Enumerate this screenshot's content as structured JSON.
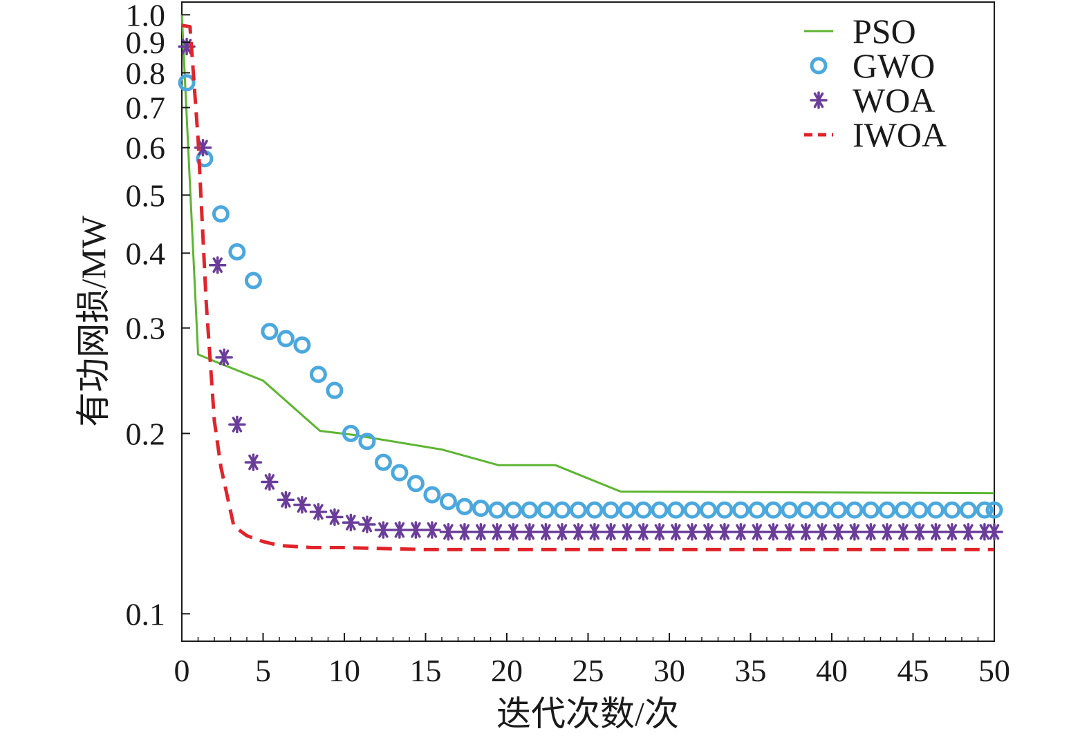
{
  "chart_data": {
    "type": "line",
    "xlabel": "迭代次数/次",
    "ylabel": "有功网损/MW",
    "xlim": [
      0,
      50
    ],
    "ylim": [
      0.09,
      1.05
    ],
    "y_scale": "log",
    "grid": false,
    "legend_position": "top-right",
    "x_ticks": [
      "0",
      "5",
      "10",
      "15",
      "20",
      "25",
      "30",
      "35",
      "40",
      "45",
      "50"
    ],
    "y_ticks": [
      "0.1",
      "0.2",
      "0.3",
      "0.4",
      "0.5",
      "0.6",
      "0.7",
      "0.8",
      "0.9",
      "1.0"
    ],
    "series": [
      {
        "name": "PSO",
        "color": "#5cb531",
        "style": "solid",
        "x": [
          0,
          1,
          2,
          5,
          8.5,
          10.5,
          16,
          19.5,
          23,
          27,
          50
        ],
        "y": [
          1.0,
          0.271,
          0.264,
          0.245,
          0.202,
          0.199,
          0.188,
          0.177,
          0.177,
          0.16,
          0.159
        ]
      },
      {
        "name": "GWO",
        "color": "#4aa8de",
        "style": "circle-markers",
        "x": [
          0.3,
          1.4,
          2.4,
          3.4,
          4.4,
          5.4,
          6.4,
          7.4,
          8.4,
          9.4,
          10.4,
          11.4,
          12.4,
          13.4,
          14.4,
          15.4,
          16.4,
          17.4,
          18.4,
          19.4,
          20.4,
          21.4,
          22.4,
          23.4,
          24.4,
          25.4,
          26.4,
          27.4,
          28.4,
          29.4,
          30.4,
          31.4,
          32.4,
          33.4,
          34.4,
          35.4,
          36.4,
          37.4,
          38.4,
          39.4,
          40.4,
          41.4,
          42.4,
          43.4,
          44.4,
          45.4,
          46.4,
          47.4,
          48.4,
          49.4,
          50
        ],
        "y": [
          0.77,
          0.575,
          0.465,
          0.402,
          0.36,
          0.296,
          0.288,
          0.281,
          0.251,
          0.236,
          0.2,
          0.194,
          0.179,
          0.172,
          0.165,
          0.158,
          0.154,
          0.151,
          0.15,
          0.149,
          0.149,
          0.149,
          0.149,
          0.149,
          0.149,
          0.149,
          0.149,
          0.149,
          0.149,
          0.149,
          0.149,
          0.149,
          0.149,
          0.149,
          0.149,
          0.149,
          0.149,
          0.149,
          0.149,
          0.149,
          0.149,
          0.149,
          0.149,
          0.149,
          0.149,
          0.149,
          0.149,
          0.149,
          0.149,
          0.149,
          0.149
        ]
      },
      {
        "name": "WOA",
        "color": "#6a3d9a",
        "style": "star-markers",
        "x": [
          0.3,
          1.3,
          2.2,
          2.6,
          3.4,
          4.4,
          5.4,
          6.4,
          7.4,
          8.4,
          9.4,
          10.4,
          11.4,
          12.4,
          13.4,
          14.4,
          15.4,
          16.4,
          17.4,
          18.4,
          19.4,
          20.4,
          21.4,
          22.4,
          23.4,
          24.4,
          25.4,
          26.4,
          27.4,
          28.4,
          29.4,
          30.4,
          31.4,
          32.4,
          33.4,
          34.4,
          35.4,
          36.4,
          37.4,
          38.4,
          39.4,
          40.4,
          41.4,
          42.4,
          43.4,
          44.4,
          45.4,
          46.4,
          47.4,
          48.4,
          49.4,
          50
        ],
        "y": [
          0.885,
          0.6,
          0.382,
          0.268,
          0.207,
          0.179,
          0.166,
          0.155,
          0.152,
          0.148,
          0.145,
          0.142,
          0.141,
          0.138,
          0.138,
          0.138,
          0.138,
          0.137,
          0.137,
          0.137,
          0.137,
          0.137,
          0.137,
          0.137,
          0.137,
          0.137,
          0.137,
          0.137,
          0.137,
          0.137,
          0.137,
          0.137,
          0.137,
          0.137,
          0.137,
          0.137,
          0.137,
          0.137,
          0.137,
          0.137,
          0.137,
          0.137,
          0.137,
          0.137,
          0.137,
          0.137,
          0.137,
          0.137,
          0.137,
          0.137,
          0.137,
          0.137
        ]
      },
      {
        "name": "IWOA",
        "color": "#e0242a",
        "style": "dashed",
        "x": [
          0,
          0.5,
          1,
          1.5,
          2,
          2.4,
          3.2,
          4,
          5,
          6,
          8,
          10,
          15,
          20,
          30,
          40,
          50
        ],
        "y": [
          0.96,
          0.955,
          0.62,
          0.33,
          0.21,
          0.176,
          0.14,
          0.135,
          0.132,
          0.13,
          0.129,
          0.129,
          0.128,
          0.128,
          0.128,
          0.128,
          0.128
        ]
      }
    ]
  }
}
